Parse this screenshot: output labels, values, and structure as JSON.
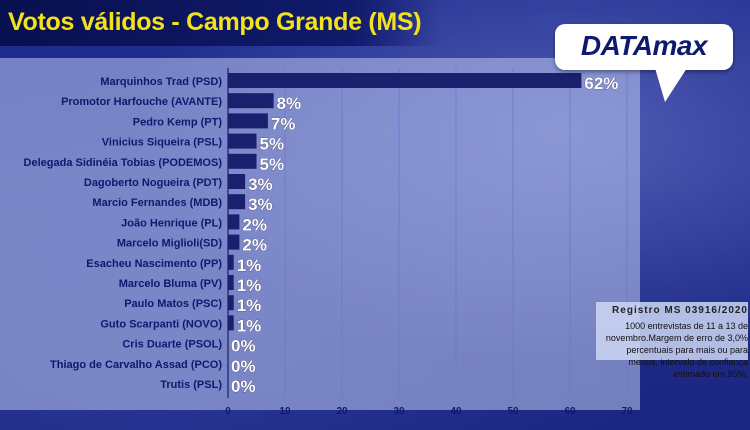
{
  "header": {
    "title": "Votos válidos - Campo Grande (MS)"
  },
  "brand": {
    "logo_text": "DATAmax"
  },
  "note": {
    "heading": "Registro MS 03916/2020",
    "body": "1000 entrevistas de 11 a 13 de novembro.Margem de erro de 3,0% percentuais para mais ou para menos, intervalo de confiança estimado em 95%."
  },
  "colors": {
    "bar": "#1a1f6e",
    "title": "#f2e21b",
    "grid": "#6a78d0"
  },
  "chart_data": {
    "type": "bar",
    "orientation": "horizontal",
    "title": "Votos válidos - Campo Grande (MS)",
    "categories": [
      "Marquinhos Trad (PSD)",
      "Promotor Harfouche (AVANTE)",
      "Pedro Kemp (PT)",
      "Vinicius Siqueira (PSL)",
      "Delegada Sidinéia Tobias (PODEMOS)",
      "Dagoberto Nogueira (PDT)",
      "Marcio Fernandes (MDB)",
      "João Henrique (PL)",
      "Marcelo Miglioli(SD)",
      "Esacheu Nascimento (PP)",
      "Marcelo Bluma (PV)",
      "Paulo Matos (PSC)",
      "Guto Scarpanti (NOVO)",
      "Cris Duarte (PSOL)",
      "Thiago de Carvalho Assad (PCO)",
      "Trutis (PSL)"
    ],
    "values": [
      62,
      8,
      7,
      5,
      5,
      3,
      3,
      2,
      2,
      1,
      1,
      1,
      1,
      0,
      0,
      0
    ],
    "value_labels": [
      "62%",
      "8%",
      "7%",
      "5%",
      "5%",
      "3%",
      "3%",
      "2%",
      "2%",
      "1%",
      "1%",
      "1%",
      "1%",
      "0%",
      "0%",
      "0%"
    ],
    "xlim": [
      0,
      70
    ],
    "xticks": [
      "0",
      "10",
      "20",
      "30",
      "40",
      "50",
      "60",
      "70"
    ],
    "grid": true,
    "legend": "none"
  }
}
